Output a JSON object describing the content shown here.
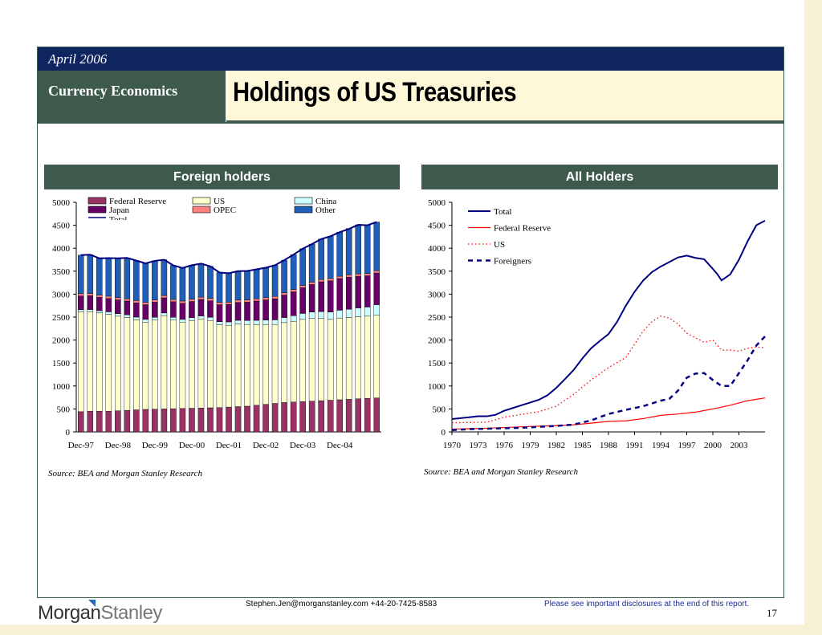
{
  "header": {
    "date": "April 2006",
    "section": "Currency Economics",
    "title": "Holdings of US Treasuries"
  },
  "left_panel": {
    "heading": "Foreign holders",
    "source": "Source: BEA and Morgan Stanley Research"
  },
  "right_panel": {
    "heading": "All Holders",
    "source": "Source: BEA and Morgan Stanley Research"
  },
  "footer": {
    "email": "Stephen.Jen@morganstanley.com +44-20-7425-8583",
    "disclosure": "Please see  important disclosures at the end of this report.",
    "page": "17",
    "logo_morgan": "Morgan",
    "logo_stanley": "Stanley"
  },
  "chart_data": [
    {
      "type": "bar",
      "stacked": true,
      "ylim": [
        0,
        5000
      ],
      "yticks": [
        0,
        500,
        1000,
        1500,
        2000,
        2500,
        3000,
        3500,
        4000,
        4500,
        5000
      ],
      "xtick_labels": [
        "Dec-97",
        "Dec-98",
        "Dec-99",
        "Dec-00",
        "Dec-01",
        "Dec-02",
        "Dec-03",
        "Dec-04"
      ],
      "xtick_indices": [
        0,
        4,
        8,
        12,
        16,
        20,
        24,
        28
      ],
      "legend_position": "top",
      "series": [
        {
          "name": "Federal Reserve",
          "color": "#993366",
          "values": [
            440,
            450,
            450,
            450,
            460,
            470,
            480,
            490,
            495,
            500,
            505,
            510,
            515,
            520,
            525,
            530,
            540,
            550,
            560,
            580,
            600,
            620,
            640,
            650,
            660,
            670,
            680,
            690,
            700,
            710,
            720,
            730,
            740
          ]
        },
        {
          "name": "US",
          "color": "#ffffcc",
          "values": [
            2180,
            2170,
            2140,
            2110,
            2060,
            2020,
            1960,
            1900,
            1940,
            2030,
            1930,
            1880,
            1910,
            1940,
            1900,
            1800,
            1780,
            1800,
            1780,
            1760,
            1740,
            1720,
            1740,
            1760,
            1790,
            1800,
            1790,
            1760,
            1780,
            1780,
            1790,
            1790,
            1800
          ]
        },
        {
          "name": "China",
          "color": "#ccffff",
          "values": [
            40,
            45,
            50,
            55,
            55,
            60,
            60,
            60,
            60,
            60,
            60,
            60,
            65,
            65,
            70,
            70,
            75,
            80,
            85,
            90,
            95,
            100,
            110,
            120,
            130,
            140,
            150,
            160,
            170,
            180,
            190,
            200,
            230
          ]
        },
        {
          "name": "Japan",
          "color": "#660066",
          "values": [
            300,
            300,
            290,
            290,
            300,
            300,
            310,
            320,
            330,
            330,
            340,
            350,
            350,
            360,
            360,
            370,
            380,
            390,
            400,
            420,
            440,
            460,
            490,
            520,
            560,
            600,
            650,
            680,
            690,
            700,
            690,
            680,
            690
          ]
        },
        {
          "name": "OPEC",
          "color": "#ff8080",
          "values": [
            50,
            50,
            50,
            50,
            50,
            50,
            50,
            50,
            50,
            50,
            50,
            50,
            50,
            50,
            50,
            50,
            50,
            50,
            50,
            50,
            50,
            50,
            50,
            50,
            50,
            50,
            50,
            50,
            50,
            50,
            50,
            50,
            50
          ]
        },
        {
          "name": "Other",
          "color": "#1f5fb8",
          "values": [
            840,
            845,
            810,
            830,
            855,
            890,
            870,
            850,
            850,
            780,
            740,
            720,
            740,
            730,
            700,
            650,
            630,
            630,
            630,
            640,
            650,
            680,
            710,
            760,
            800,
            830,
            880,
            920,
            960,
            1010,
            1070,
            1050,
            1060
          ]
        }
      ],
      "total": {
        "name": "Total",
        "color": "#000080",
        "values": [
          3850,
          3860,
          3780,
          3785,
          3780,
          3790,
          3730,
          3670,
          3725,
          3750,
          3625,
          3570,
          3630,
          3665,
          3605,
          3470,
          3455,
          3500,
          3505,
          3540,
          3575,
          3630,
          3740,
          3860,
          3990,
          4090,
          4200,
          4260,
          4350,
          4420,
          4510,
          4500,
          4570
        ]
      }
    },
    {
      "type": "line",
      "ylim": [
        0,
        5000
      ],
      "yticks": [
        0,
        500,
        1000,
        1500,
        2000,
        2500,
        3000,
        3500,
        4000,
        4500,
        5000
      ],
      "xlim": [
        1970,
        2006
      ],
      "xticks": [
        1970,
        1973,
        1976,
        1979,
        1982,
        1985,
        1988,
        1991,
        1994,
        1997,
        2000,
        2003
      ],
      "legend_position": "top-left",
      "series": [
        {
          "name": "Total",
          "color": "#000080",
          "style": "solid",
          "x": [
            1970,
            1971,
            1972,
            1973,
            1974,
            1975,
            1976,
            1977,
            1978,
            1979,
            1980,
            1981,
            1982,
            1983,
            1984,
            1985,
            1986,
            1987,
            1988,
            1989,
            1990,
            1991,
            1992,
            1993,
            1994,
            1995,
            1996,
            1997,
            1998,
            1999,
            2000,
            2000.5,
            2001,
            2002,
            2003,
            2004,
            2005,
            2005.5,
            2006
          ],
          "y": [
            280,
            300,
            320,
            340,
            340,
            370,
            460,
            520,
            580,
            640,
            700,
            800,
            960,
            1150,
            1350,
            1600,
            1820,
            1980,
            2130,
            2400,
            2750,
            3050,
            3300,
            3480,
            3600,
            3700,
            3800,
            3840,
            3790,
            3760,
            3550,
            3440,
            3300,
            3430,
            3750,
            4150,
            4500,
            4550,
            4600
          ]
        },
        {
          "name": "Federal Reserve",
          "color": "#ff0000",
          "style": "solid",
          "x": [
            1970,
            1972,
            1974,
            1976,
            1978,
            1980,
            1982,
            1984,
            1986,
            1988,
            1990,
            1992,
            1994,
            1996,
            1998,
            2000,
            2002,
            2004,
            2006
          ],
          "y": [
            60,
            70,
            80,
            95,
            110,
            125,
            135,
            155,
            190,
            230,
            240,
            290,
            360,
            390,
            430,
            500,
            580,
            680,
            740
          ]
        },
        {
          "name": "US",
          "color": "#ff0000",
          "style": "dotted",
          "x": [
            1970,
            1972,
            1974,
            1976,
            1978,
            1980,
            1982,
            1984,
            1986,
            1988,
            1990,
            1992,
            1993,
            1994,
            1995,
            1996,
            1997,
            1998,
            1999,
            2000,
            2001,
            2002,
            2003,
            2004,
            2005,
            2006
          ],
          "y": [
            200,
            205,
            210,
            320,
            380,
            440,
            560,
            820,
            1130,
            1400,
            1620,
            2200,
            2400,
            2520,
            2480,
            2350,
            2150,
            2050,
            1950,
            2000,
            1780,
            1780,
            1760,
            1820,
            1850,
            1830
          ]
        },
        {
          "name": "Foreigners",
          "color": "#000080",
          "style": "dashed",
          "x": [
            1970,
            1972,
            1974,
            1976,
            1978,
            1980,
            1982,
            1984,
            1986,
            1988,
            1990,
            1992,
            1994,
            1995,
            1996,
            1997,
            1998,
            1999,
            2000,
            2001,
            2002,
            2003,
            2004,
            2005,
            2006
          ],
          "y": [
            40,
            60,
            70,
            80,
            90,
            110,
            130,
            160,
            250,
            390,
            480,
            560,
            680,
            720,
            900,
            1180,
            1270,
            1280,
            1130,
            1000,
            1000,
            1280,
            1560,
            1880,
            2080
          ]
        }
      ]
    }
  ]
}
